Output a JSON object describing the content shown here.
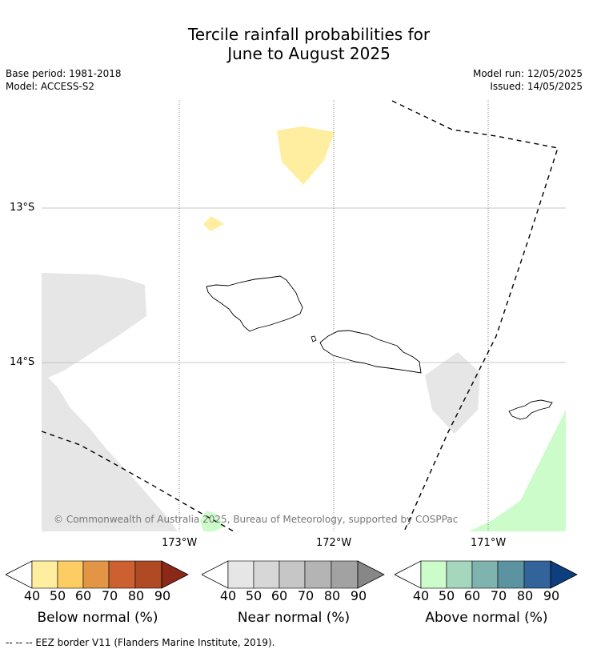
{
  "title_line1": "Tercile rainfall probabilities for",
  "title_line2": "June to August 2025",
  "meta": {
    "base_period": "Base period: 1981-2018",
    "model": "Model: ACCESS-S2",
    "model_run": "Model run: 12/05/2025",
    "issued": "Issued: 14/05/2025"
  },
  "map": {
    "lat_labels": [
      "13°S",
      "14°S"
    ],
    "lon_labels": [
      "173°W",
      "172°W",
      "171°W"
    ],
    "copyright": "© Commonwealth of Australia 2025, Bureau of Meteorology, supported by COSPPac",
    "features": [
      "Savai'i",
      "Upolu",
      "Tutuila"
    ]
  },
  "legends": [
    {
      "id": "below",
      "title": "Below normal (%)",
      "ticks": [
        "40",
        "50",
        "60",
        "70",
        "80",
        "90"
      ],
      "colors": [
        "#ffeea0",
        "#fdcd64",
        "#e19545",
        "#cd6031",
        "#b04a25",
        "#8c2818"
      ]
    },
    {
      "id": "near",
      "title": "Near normal (%)",
      "ticks": [
        "40",
        "50",
        "60",
        "70",
        "80",
        "90"
      ],
      "colors": [
        "#e6e6e6",
        "#d7d7d7",
        "#c6c6c6",
        "#b4b4b4",
        "#a2a2a2",
        "#878787"
      ]
    },
    {
      "id": "above",
      "title": "Above normal (%)",
      "ticks": [
        "40",
        "50",
        "60",
        "70",
        "80",
        "90"
      ],
      "colors": [
        "#ccfcca",
        "#a5d6be",
        "#7fb3b0",
        "#5b93a1",
        "#32649a",
        "#0d3f7e"
      ]
    }
  ],
  "footnote": "--  --  -- EEZ border V11 (Flanders Marine Institute, 2019)."
}
